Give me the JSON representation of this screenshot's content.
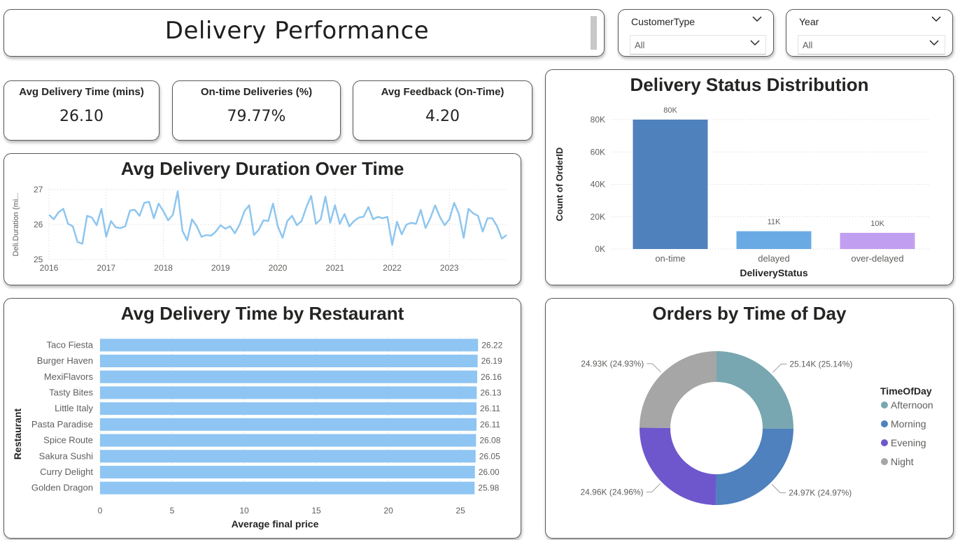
{
  "header": {
    "title": "Delivery Performance"
  },
  "slicers": [
    {
      "label": "CustomerType",
      "value": "All"
    },
    {
      "label": "Year",
      "value": "All"
    }
  ],
  "kpis": [
    {
      "label": "Avg Delivery Time (mins)",
      "value": "26.10"
    },
    {
      "label": "On-time Deliveries (%)",
      "value": "79.77%"
    },
    {
      "label": "Avg Feedback (On-Time)",
      "value": "4.20"
    }
  ],
  "colors": {
    "line": "#8ec6ef",
    "bar_restaurant": "#8ec5f3",
    "ontime": "#4f81bd",
    "delayed": "#6aaae4",
    "overdelayed": "#c19ff0",
    "afternoon": "#78a7b1",
    "morning": "#4e81bd",
    "evening": "#6e57cc",
    "night": "#a6a6a6"
  },
  "chart_data": [
    {
      "id": "duration",
      "type": "line",
      "title": "Avg Delivery Duration Over Time",
      "xlabel": "",
      "ylabel": "Deli.Duration (mi...",
      "ylim": [
        25,
        27
      ],
      "yticks": [
        "27",
        "26",
        "25"
      ],
      "xticks": [
        "2016",
        "2017",
        "2018",
        "2019",
        "2020",
        "2021",
        "2022",
        "2023"
      ],
      "x_start": "2016-01",
      "values": [
        26.28,
        26.15,
        26.35,
        26.45,
        26.02,
        25.95,
        25.5,
        25.45,
        26.25,
        26.2,
        25.98,
        26.45,
        25.65,
        26.1,
        25.92,
        25.9,
        25.95,
        26.4,
        26.42,
        26.25,
        26.62,
        26.65,
        26.18,
        26.6,
        26.38,
        26.12,
        26.28,
        26.95,
        25.82,
        25.55,
        26.15,
        25.95,
        25.65,
        25.7,
        25.68,
        25.8,
        25.98,
        25.88,
        25.95,
        25.75,
        26.0,
        26.38,
        26.55,
        25.7,
        25.85,
        26.12,
        26.1,
        26.6,
        25.95,
        25.62,
        26.1,
        26.25,
        25.98,
        26.1,
        26.5,
        26.82,
        26.02,
        26.15,
        26.8,
        26.05,
        26.55,
        26.02,
        26.3,
        25.95,
        26.1,
        26.2,
        26.22,
        26.5,
        26.15,
        26.22,
        26.18,
        26.22,
        25.42,
        26.08,
        25.72,
        26.0,
        26.05,
        26.02,
        26.42,
        25.9,
        26.18,
        26.55,
        26.22,
        25.98,
        26.15,
        26.62,
        26.3,
        25.62,
        26.45,
        26.32,
        26.25,
        25.8,
        26.18,
        26.18,
        25.95,
        25.6,
        25.7
      ]
    },
    {
      "id": "status",
      "type": "bar",
      "title": "Delivery Status Distribution",
      "xlabel": "DeliveryStatus",
      "ylabel": "Count of OrderID",
      "categories": [
        "on-time",
        "delayed",
        "over-delayed"
      ],
      "values": [
        80000,
        11000,
        10000
      ],
      "data_labels": [
        "80K",
        "11K",
        "10K"
      ],
      "ylim": [
        0,
        80000
      ],
      "yticks": [
        "80K",
        "60K",
        "40K",
        "20K",
        "0K"
      ]
    },
    {
      "id": "restaurant",
      "type": "bar",
      "orientation": "horizontal",
      "title": "Avg Delivery Time by Restaurant",
      "xlabel": "Average final price",
      "ylabel": "Restaurant",
      "categories": [
        "Taco Fiesta",
        "Burger Haven",
        "MexiFlavors",
        "Tasty Bites",
        "Little Italy",
        "Pasta Paradise",
        "Spice Route",
        "Sakura Sushi",
        "Curry Delight",
        "Golden Dragon"
      ],
      "values": [
        26.22,
        26.19,
        26.16,
        26.13,
        26.11,
        26.11,
        26.08,
        26.05,
        26.0,
        25.98
      ],
      "data_labels": [
        "26.22",
        "26.19",
        "26.16",
        "26.13",
        "26.11",
        "26.11",
        "26.08",
        "26.05",
        "26.00",
        "25.98"
      ],
      "xlim": [
        0,
        26.5
      ],
      "xticks": [
        "0",
        "5",
        "10",
        "15",
        "20",
        "25"
      ]
    },
    {
      "id": "timeofday",
      "type": "pie",
      "donut": true,
      "title": "Orders by Time of Day",
      "legend_title": "TimeOfDay",
      "categories": [
        "Afternoon",
        "Morning",
        "Evening",
        "Night"
      ],
      "values": [
        25140,
        24970,
        24960,
        24930
      ],
      "data_labels": [
        "25.14K (25.14%)",
        "24.97K (24.97%)",
        "24.96K (24.96%)",
        "24.93K (24.93%)"
      ],
      "legend_position": "right"
    }
  ]
}
